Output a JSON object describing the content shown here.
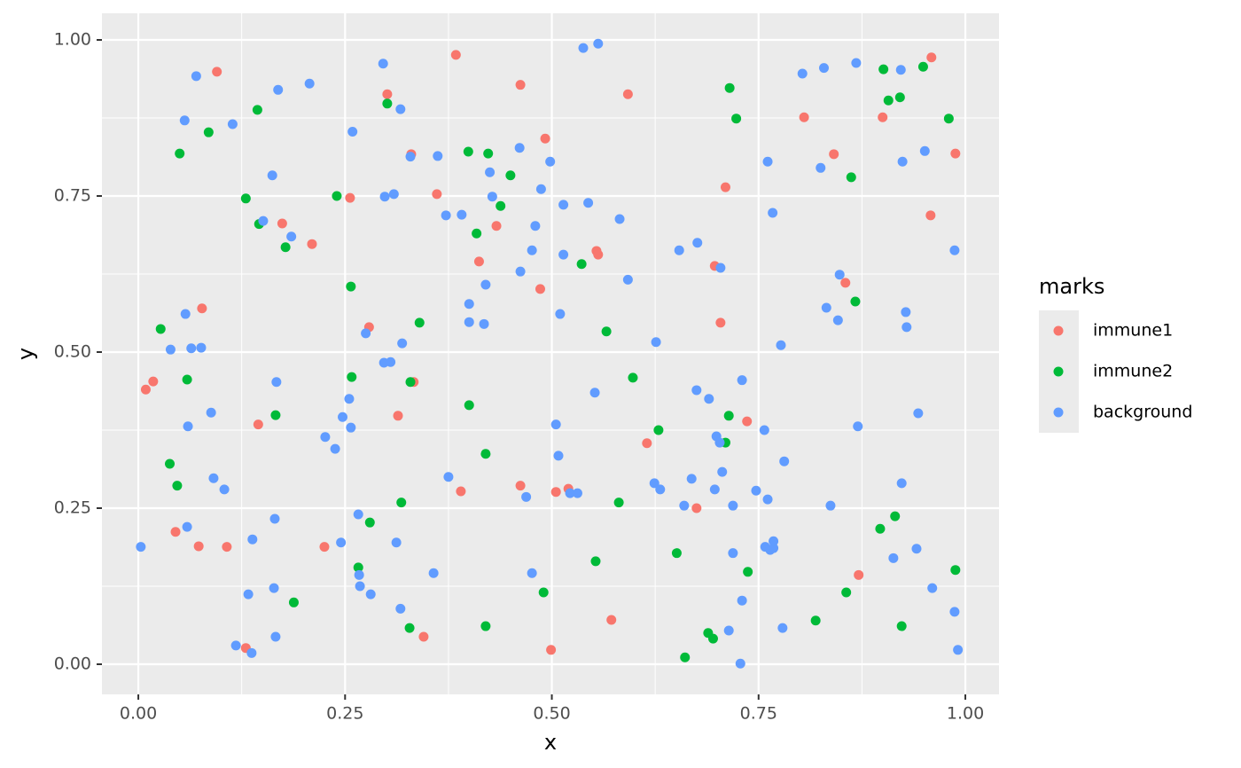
{
  "chart_data": {
    "type": "scatter",
    "x_label": "x",
    "y_label": "y",
    "legend_title": "marks",
    "xlim": [
      -0.044,
      1.0407
    ],
    "ylim": [
      -0.0483,
      1.0426
    ],
    "xticks": [
      {
        "value": 0,
        "label": "0.00"
      },
      {
        "value": 0.25,
        "label": "0.25"
      },
      {
        "value": 0.5,
        "label": "0.50"
      },
      {
        "value": 0.75,
        "label": "0.75"
      },
      {
        "value": 1,
        "label": "1.00"
      }
    ],
    "yticks": [
      {
        "value": 0,
        "label": "0.00"
      },
      {
        "value": 0.25,
        "label": "0.25"
      },
      {
        "value": 0.5,
        "label": "0.50"
      },
      {
        "value": 0.75,
        "label": "0.75"
      },
      {
        "value": 1,
        "label": "1.00"
      }
    ],
    "grid": true,
    "minor_grid": true,
    "legend_position": "right",
    "series": [
      {
        "name": "immune1",
        "color": "#F8766D",
        "x": [
          0.095,
          0.384,
          0.462,
          0.301,
          0.959,
          0.592,
          0.492,
          0.805,
          0.9,
          0.988,
          0.841,
          0.33,
          0.256,
          0.361,
          0.174,
          0.21,
          0.433,
          0.412,
          0.554,
          0.556,
          0.697,
          0.704,
          0.486,
          0.855,
          0.958,
          0.077,
          0.279,
          0.009,
          0.018,
          0.333,
          0.314,
          0.145,
          0.736,
          0.615,
          0.462,
          0.505,
          0.52,
          0.39,
          0.675,
          0.045,
          0.073,
          0.107,
          0.225,
          0.871,
          0.572,
          0.345,
          0.13,
          0.499,
          0.71
        ],
        "values": [
          0.949,
          0.976,
          0.928,
          0.913,
          0.972,
          0.913,
          0.842,
          0.876,
          0.876,
          0.818,
          0.817,
          0.817,
          0.747,
          0.753,
          0.706,
          0.673,
          0.702,
          0.645,
          0.662,
          0.656,
          0.638,
          0.547,
          0.601,
          0.611,
          0.719,
          0.57,
          0.54,
          0.44,
          0.453,
          0.452,
          0.398,
          0.384,
          0.389,
          0.354,
          0.286,
          0.276,
          0.281,
          0.277,
          0.25,
          0.212,
          0.189,
          0.188,
          0.188,
          0.143,
          0.071,
          0.044,
          0.026,
          0.023,
          0.764
        ]
      },
      {
        "name": "immune2",
        "color": "#00BA38",
        "x": [
          0.901,
          0.949,
          0.907,
          0.921,
          0.98,
          0.715,
          0.723,
          0.301,
          0.144,
          0.085,
          0.05,
          0.399,
          0.423,
          0.45,
          0.24,
          0.13,
          0.438,
          0.409,
          0.146,
          0.178,
          0.536,
          0.257,
          0.862,
          0.867,
          0.566,
          0.027,
          0.34,
          0.059,
          0.258,
          0.329,
          0.598,
          0.4,
          0.166,
          0.714,
          0.629,
          0.71,
          0.038,
          0.42,
          0.047,
          0.318,
          0.581,
          0.28,
          0.266,
          0.897,
          0.915,
          0.553,
          0.651,
          0.737,
          0.988,
          0.856,
          0.49,
          0.188,
          0.328,
          0.42,
          0.819,
          0.923,
          0.689,
          0.695,
          0.661
        ],
        "values": [
          0.953,
          0.957,
          0.903,
          0.908,
          0.874,
          0.923,
          0.874,
          0.898,
          0.888,
          0.852,
          0.818,
          0.821,
          0.818,
          0.783,
          0.75,
          0.746,
          0.734,
          0.69,
          0.705,
          0.668,
          0.641,
          0.605,
          0.78,
          0.581,
          0.533,
          0.537,
          0.547,
          0.456,
          0.46,
          0.452,
          0.459,
          0.415,
          0.399,
          0.398,
          0.375,
          0.355,
          0.321,
          0.337,
          0.286,
          0.259,
          0.259,
          0.227,
          0.155,
          0.217,
          0.237,
          0.165,
          0.178,
          0.148,
          0.151,
          0.115,
          0.115,
          0.099,
          0.058,
          0.061,
          0.07,
          0.061,
          0.05,
          0.041,
          0.011
        ]
      },
      {
        "name": "background",
        "color": "#619CFF",
        "x": [
          0.556,
          0.538,
          0.868,
          0.829,
          0.803,
          0.922,
          0.296,
          0.07,
          0.207,
          0.169,
          0.056,
          0.114,
          0.317,
          0.259,
          0.761,
          0.825,
          0.924,
          0.951,
          0.461,
          0.498,
          0.425,
          0.362,
          0.329,
          0.162,
          0.487,
          0.309,
          0.298,
          0.151,
          0.372,
          0.391,
          0.428,
          0.514,
          0.544,
          0.582,
          0.48,
          0.676,
          0.654,
          0.767,
          0.704,
          0.476,
          0.514,
          0.592,
          0.462,
          0.42,
          0.185,
          0.848,
          0.832,
          0.846,
          0.928,
          0.929,
          0.987,
          0.057,
          0.039,
          0.064,
          0.076,
          0.4,
          0.4,
          0.418,
          0.51,
          0.626,
          0.777,
          0.319,
          0.275,
          0.297,
          0.305,
          0.167,
          0.255,
          0.247,
          0.257,
          0.088,
          0.06,
          0.226,
          0.238,
          0.375,
          0.675,
          0.69,
          0.73,
          0.552,
          0.505,
          0.508,
          0.699,
          0.703,
          0.706,
          0.757,
          0.781,
          0.87,
          0.943,
          0.923,
          0.624,
          0.631,
          0.522,
          0.531,
          0.469,
          0.669,
          0.697,
          0.747,
          0.719,
          0.761,
          0.837,
          0.66,
          0.091,
          0.104,
          0.059,
          0.138,
          0.266,
          0.245,
          0.165,
          0.312,
          0.941,
          0.913,
          0.758,
          0.768,
          0.764,
          0.719,
          0.357,
          0.476,
          0.267,
          0.268,
          0.281,
          0.164,
          0.133,
          0.317,
          0.73,
          0.96,
          0.987,
          0.779,
          0.714,
          0.118,
          0.137,
          0.003,
          0.166,
          0.728,
          0.991,
          0.768
        ],
        "values": [
          0.994,
          0.987,
          0.963,
          0.955,
          0.946,
          0.952,
          0.962,
          0.942,
          0.93,
          0.92,
          0.871,
          0.865,
          0.889,
          0.853,
          0.805,
          0.795,
          0.805,
          0.822,
          0.827,
          0.805,
          0.788,
          0.814,
          0.813,
          0.783,
          0.761,
          0.753,
          0.749,
          0.71,
          0.719,
          0.72,
          0.749,
          0.736,
          0.739,
          0.713,
          0.702,
          0.675,
          0.663,
          0.723,
          0.635,
          0.663,
          0.656,
          0.616,
          0.629,
          0.608,
          0.685,
          0.624,
          0.571,
          0.551,
          0.564,
          0.54,
          0.663,
          0.561,
          0.504,
          0.506,
          0.507,
          0.577,
          0.548,
          0.545,
          0.561,
          0.516,
          0.511,
          0.514,
          0.53,
          0.483,
          0.484,
          0.452,
          0.425,
          0.396,
          0.379,
          0.403,
          0.381,
          0.364,
          0.345,
          0.3,
          0.439,
          0.425,
          0.455,
          0.435,
          0.384,
          0.334,
          0.365,
          0.355,
          0.308,
          0.375,
          0.325,
          0.381,
          0.402,
          0.29,
          0.29,
          0.28,
          0.274,
          0.274,
          0.268,
          0.297,
          0.28,
          0.278,
          0.254,
          0.264,
          0.254,
          0.254,
          0.298,
          0.28,
          0.22,
          0.2,
          0.24,
          0.195,
          0.233,
          0.195,
          0.185,
          0.17,
          0.188,
          0.186,
          0.183,
          0.178,
          0.146,
          0.146,
          0.143,
          0.125,
          0.112,
          0.122,
          0.112,
          0.089,
          0.102,
          0.122,
          0.084,
          0.058,
          0.054,
          0.03,
          0.018,
          0.188,
          0.044,
          0.001,
          0.023,
          0.197
        ]
      }
    ]
  }
}
